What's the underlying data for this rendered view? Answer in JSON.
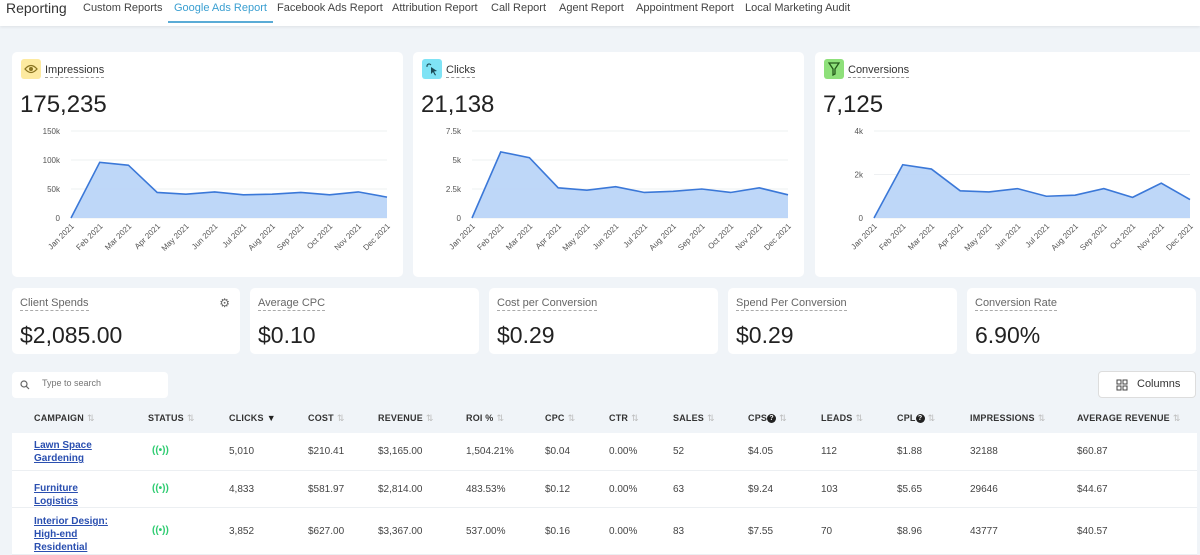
{
  "nav": {
    "brand": "Reporting",
    "tabs": [
      {
        "label": "Custom Reports"
      },
      {
        "label": "Google Ads Report",
        "active": true
      },
      {
        "label": "Facebook Ads Report"
      },
      {
        "label": "Attribution Report"
      },
      {
        "label": "Call Report"
      },
      {
        "label": "Agent Report"
      },
      {
        "label": "Appointment Report"
      },
      {
        "label": "Local Marketing Audit"
      }
    ]
  },
  "colors": {
    "accent": "#3a9fd1",
    "line": "#3b78d8",
    "fill": "#b7d3f7",
    "status": "#2ecc71"
  },
  "summary": [
    {
      "title": "Impressions",
      "value": "175,235",
      "icon": "eye-icon",
      "icon_bg": "#fdeaa0"
    },
    {
      "title": "Clicks",
      "value": "21,138",
      "icon": "cursor-click-icon",
      "icon_bg": "#7fe3f5"
    },
    {
      "title": "Conversions",
      "value": "7,125",
      "icon": "funnel-icon",
      "icon_bg": "#8ee07a"
    }
  ],
  "chart_data": [
    {
      "type": "area",
      "categories": [
        "Jan 2021",
        "Feb 2021",
        "Mar 2021",
        "Apr 2021",
        "May 2021",
        "Jun 2021",
        "Jul 2021",
        "Aug 2021",
        "Sep 2021",
        "Oct 2021",
        "Nov 2021",
        "Dec 2021"
      ],
      "values": [
        0,
        96000,
        91000,
        44000,
        41000,
        45000,
        40000,
        41000,
        44000,
        40000,
        45000,
        36000
      ],
      "ylim": [
        0,
        150000
      ],
      "yticks": [
        "0",
        "50k",
        "100k",
        "150k"
      ],
      "grid": true
    },
    {
      "type": "area",
      "categories": [
        "Jan 2021",
        "Feb 2021",
        "Mar 2021",
        "Apr 2021",
        "May 2021",
        "Jun 2021",
        "Jul 2021",
        "Aug 2021",
        "Sep 2021",
        "Oct 2021",
        "Nov 2021",
        "Dec 2021"
      ],
      "values": [
        0,
        5700,
        5200,
        2600,
        2400,
        2700,
        2200,
        2300,
        2500,
        2200,
        2600,
        2000
      ],
      "ylim": [
        0,
        7500
      ],
      "yticks": [
        "0",
        "2.5k",
        "5k",
        "7.5k"
      ],
      "grid": true
    },
    {
      "type": "area",
      "categories": [
        "Jan 2021",
        "Feb 2021",
        "Mar 2021",
        "Apr 2021",
        "May 2021",
        "Jun 2021",
        "Jul 2021",
        "Aug 2021",
        "Sep 2021",
        "Oct 2021",
        "Nov 2021",
        "Dec 2021"
      ],
      "values": [
        0,
        2450,
        2250,
        1250,
        1200,
        1350,
        1000,
        1050,
        1350,
        950,
        1600,
        850
      ],
      "ylim": [
        0,
        4000
      ],
      "yticks": [
        "0",
        "2k",
        "4k"
      ],
      "grid": true
    }
  ],
  "metrics": [
    {
      "title": "Client Spends",
      "value": "$2,085.00"
    },
    {
      "title": "Average CPC",
      "value": "$0.10"
    },
    {
      "title": "Cost per Conversion",
      "value": "$0.29"
    },
    {
      "title": "Spend Per Conversion",
      "value": "$0.29"
    },
    {
      "title": "Conversion Rate",
      "value": "6.90%"
    }
  ],
  "search": {
    "placeholder": "Type to search"
  },
  "columns_button": "Columns",
  "table": {
    "headers": [
      "CAMPAIGN",
      "STATUS",
      "CLICKS",
      "COST",
      "REVENUE",
      "ROI %",
      "CPC",
      "CTR",
      "SALES",
      "CPS",
      "LEADS",
      "CPL",
      "IMPRESSIONS",
      "AVERAGE REVENUE"
    ],
    "rows": [
      {
        "campaign": "Lawn Space Gardening",
        "clicks": "5,010",
        "cost": "$210.41",
        "revenue": "$3,165.00",
        "roi": "1,504.21%",
        "cpc": "$0.04",
        "ctr": "0.00%",
        "sales": "52",
        "cps": "$4.05",
        "leads": "112",
        "cpl": "$1.88",
        "impressions": "32188",
        "avg_revenue": "$60.87"
      },
      {
        "campaign": "Furniture Logistics",
        "clicks": "4,833",
        "cost": "$581.97",
        "revenue": "$2,814.00",
        "roi": "483.53%",
        "cpc": "$0.12",
        "ctr": "0.00%",
        "sales": "63",
        "cps": "$9.24",
        "leads": "103",
        "cpl": "$5.65",
        "impressions": "29646",
        "avg_revenue": "$44.67"
      },
      {
        "campaign": "Interior Design: High-end Residential",
        "clicks": "3,852",
        "cost": "$627.00",
        "revenue": "$3,367.00",
        "roi": "537.00%",
        "cpc": "$0.16",
        "ctr": "0.00%",
        "sales": "83",
        "cps": "$7.55",
        "leads": "70",
        "cpl": "$8.96",
        "impressions": "43777",
        "avg_revenue": "$40.57"
      }
    ]
  }
}
